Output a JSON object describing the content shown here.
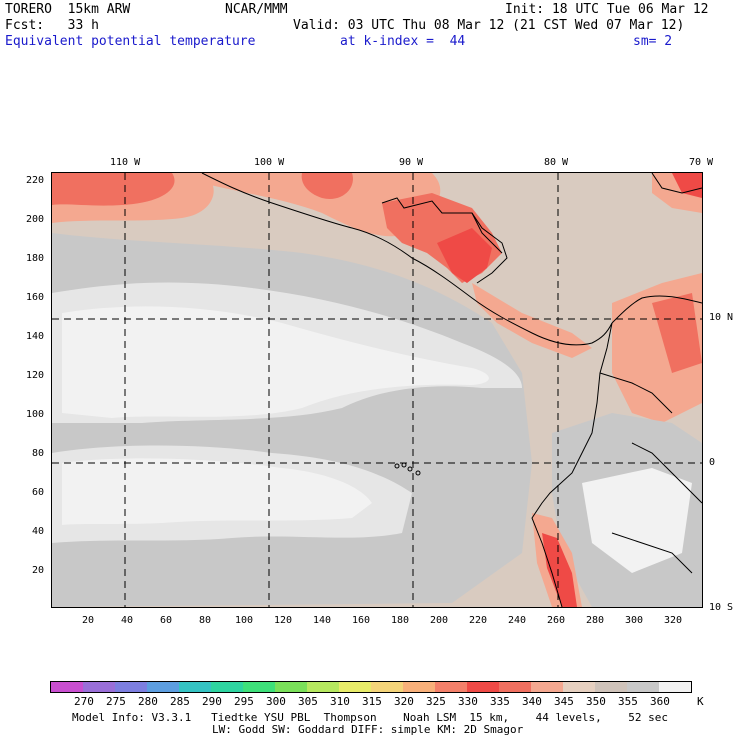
{
  "header": {
    "model": "TORERO  15km ARW",
    "org": "NCAR/MMM",
    "init": "Init: 18 UTC Tue 06 Mar 12",
    "fcst": "Fcst:   33 h",
    "valid": "Valid: 03 UTC Thu 08 Mar 12 (21 CST Wed 07 Mar 12)",
    "field": "Equivalent potential temperature",
    "level": "at k-index =  44",
    "smooth": "sm= 2"
  },
  "axes": {
    "lon_labels": [
      "110 W",
      "100 W",
      "90 W",
      "80 W",
      "70 W"
    ],
    "lat_labels": [
      "10 N",
      "0",
      "10 S"
    ],
    "y_ticks": [
      "220",
      "200",
      "180",
      "160",
      "140",
      "120",
      "100",
      "80",
      "60",
      "40",
      "20"
    ],
    "x_ticks": [
      "20",
      "40",
      "60",
      "80",
      "100",
      "120",
      "140",
      "160",
      "180",
      "200",
      "220",
      "240",
      "260",
      "280",
      "300",
      "320"
    ]
  },
  "colorbar": {
    "labels": [
      "270",
      "275",
      "280",
      "285",
      "290",
      "295",
      "300",
      "305",
      "310",
      "315",
      "320",
      "325",
      "330",
      "335",
      "340",
      "345",
      "350",
      "355",
      "360"
    ],
    "unit": "K",
    "colors": [
      "#c94fd0",
      "#9a6fd8",
      "#7d7fe0",
      "#5d9ee0",
      "#35c3c3",
      "#2ed4a0",
      "#3ee07a",
      "#7ae05a",
      "#b6e860",
      "#e8ec6a",
      "#f4d47a",
      "#f8b07a",
      "#f3806a",
      "#ef4a46",
      "#f07060",
      "#f4a890",
      "#e6d0c0",
      "#cfc3ba",
      "#c8c8c8",
      "#f2f2f2"
    ]
  },
  "footer": {
    "line1": "Model Info: V3.3.1   Tiedtke YSU PBL  Thompson    Noah LSM  15 km,    44 levels,    52 sec",
    "line2": "LW: Godd SW: Goddard DIFF: simple KM: 2D Smagor"
  }
}
